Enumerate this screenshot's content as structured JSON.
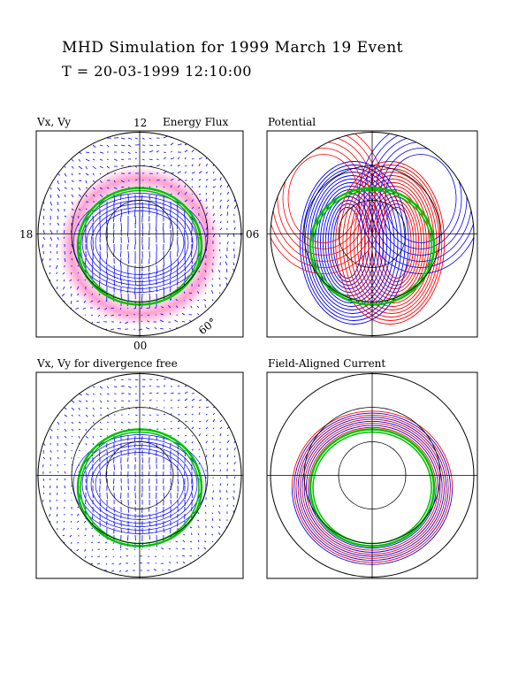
{
  "header": {
    "title": "MHD Simulation for 1999 March 19 Event",
    "time": "T = 20-03-1999  12:10:00"
  },
  "panels": [
    {
      "id": "velocity",
      "label": "Vx, Vy",
      "extra": "Energy Flux"
    },
    {
      "id": "potential",
      "label": "Potential"
    },
    {
      "id": "divfree",
      "label": "Vx, Vy  for divergence free"
    },
    {
      "id": "fac",
      "label": "Field-Aligned Current"
    }
  ],
  "axes": {
    "top": "12",
    "bottom": "00",
    "left": "18",
    "right": "06",
    "lat": "60°"
  },
  "colors": {
    "positive": "#ff0000",
    "negative": "#0000ff",
    "oval": "#00c000",
    "flux": "#ff80c0"
  }
}
